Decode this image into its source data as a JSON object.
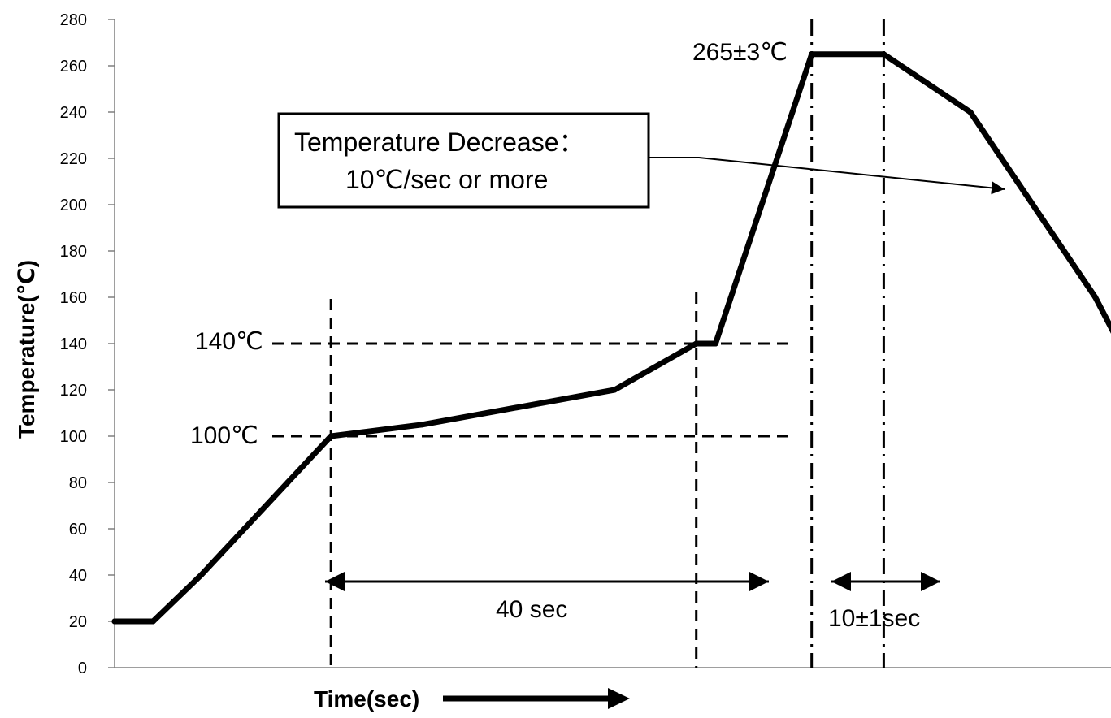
{
  "chart_data": {
    "type": "line",
    "title": "",
    "xlabel": "Time(sec)",
    "ylabel": "Temperature(℃)",
    "ylim": [
      0,
      280
    ],
    "yticks": [
      0,
      20,
      40,
      60,
      80,
      100,
      120,
      140,
      160,
      180,
      200,
      220,
      240,
      260,
      280
    ],
    "grid": false,
    "legend": "none",
    "line_color": "#000000",
    "series": [
      {
        "x": [
          0,
          8,
          18,
          27,
          36,
          45,
          64,
          104,
          121,
          125,
          145,
          160,
          178,
          191,
          204,
          214
        ],
        "y": [
          20,
          20,
          40,
          60,
          80,
          100,
          105,
          120,
          140,
          140,
          265,
          265,
          240,
          200,
          160,
          120
        ]
      }
    ],
    "guides": {
      "horizontal": [
        100,
        140
      ],
      "vertical": [
        45,
        121,
        145,
        160
      ]
    },
    "annotations": {
      "t140": "140℃",
      "t100": "100℃",
      "peak": "265±3℃",
      "span40": "40 sec",
      "span10": "10±1sec",
      "decrease_line1": "Temperature Decrease：",
      "decrease_line2": "10℃/sec or more"
    }
  }
}
